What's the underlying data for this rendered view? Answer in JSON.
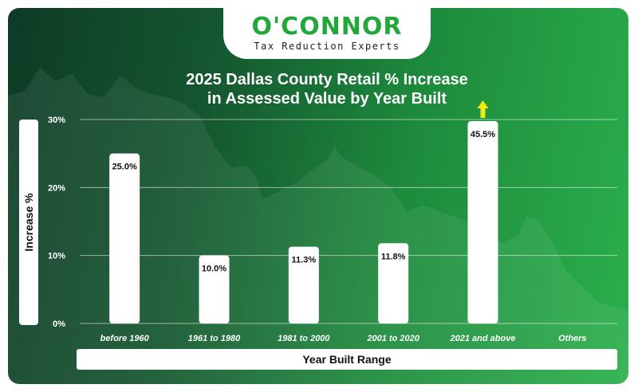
{
  "brand": {
    "name": "O'CONNOR",
    "tagline": "Tax Reduction Experts"
  },
  "chart_data": {
    "type": "bar",
    "title_line1": "2025 Dallas County Retail % Increase",
    "title_line2": "in Assessed Value by Year Built",
    "xlabel": "Year Built Range",
    "ylabel": "Increase %",
    "categories": [
      "before 1960",
      "1961 to 1980",
      "1981 to 2000",
      "2001 to 2020",
      "2021 and above",
      "Others"
    ],
    "values": [
      25.0,
      10.0,
      11.3,
      11.8,
      45.5,
      null
    ],
    "value_labels": [
      "25.0%",
      "10.0%",
      "11.3%",
      "11.8%",
      "45.5%",
      ""
    ],
    "yticks": [
      0,
      10,
      20,
      30
    ],
    "ytick_labels": [
      "0%",
      "10%",
      "20%",
      "30%"
    ],
    "ylim": [
      0,
      30
    ],
    "grid": true,
    "clipped_indicator": "arrow-up above 2021 and above bar (value exceeds axis)",
    "colors": {
      "bar": "#ffffff",
      "arrow": "#f2ea18",
      "grid": "#ffffff"
    }
  }
}
